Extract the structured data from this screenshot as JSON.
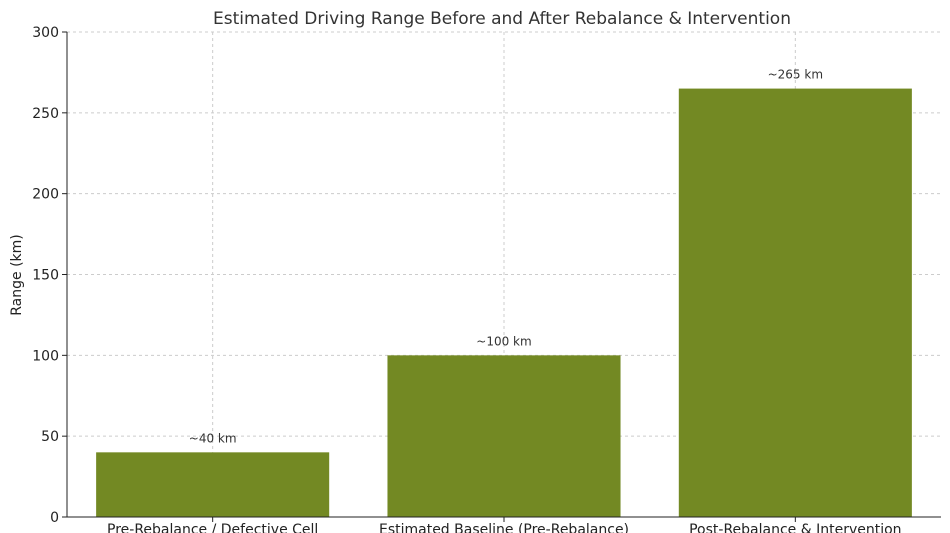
{
  "chart_data": {
    "type": "bar",
    "title": "Estimated Driving Range Before and After Rebalance & Intervention",
    "xlabel": "",
    "ylabel": "Range (km)",
    "categories": [
      "Pre-Rebalance / Defective Cell",
      "Estimated Baseline (Pre-Rebalance)",
      "Post-Rebalance & Intervention"
    ],
    "values": [
      40,
      100,
      265
    ],
    "data_labels": [
      "~40 km",
      "~100 km",
      "~265 km"
    ],
    "ylim": [
      0,
      300
    ],
    "yticks": [
      0,
      50,
      100,
      150,
      200,
      250,
      300
    ],
    "grid": true,
    "bar_color": "#738923"
  }
}
